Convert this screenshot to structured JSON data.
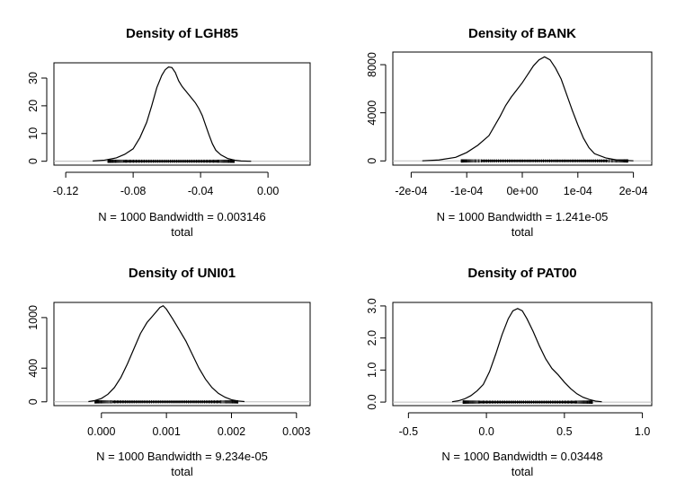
{
  "chart_data": [
    {
      "type": "line",
      "title": "Density of LGH85",
      "sub_label": "N = 1000   Bandwidth = 0.003146",
      "xlabel": "total",
      "ylabel": "",
      "xlim": [
        -0.127,
        0.025
      ],
      "ylim": [
        -1.4,
        35.5
      ],
      "xticks": [
        -0.12,
        -0.08,
        -0.04,
        0.0
      ],
      "xtick_labels": [
        "-0.12",
        "-0.08",
        "-0.04",
        "0.00"
      ],
      "yticks": [
        0,
        10,
        20,
        30
      ],
      "ytick_labels": [
        "0",
        "10",
        "20",
        "30"
      ],
      "rug_range": [
        -0.095,
        -0.02
      ],
      "x": [
        -0.104,
        -0.097,
        -0.09,
        -0.085,
        -0.08,
        -0.076,
        -0.072,
        -0.069,
        -0.066,
        -0.063,
        -0.061,
        -0.059,
        -0.057,
        -0.055,
        -0.053,
        -0.051,
        -0.049,
        -0.047,
        -0.045,
        -0.043,
        -0.041,
        -0.039,
        -0.037,
        -0.035,
        -0.033,
        -0.031,
        -0.028,
        -0.024,
        -0.02,
        -0.016,
        -0.01
      ],
      "y": [
        0.1,
        0.4,
        1.2,
        2.5,
        4.5,
        8.5,
        14.0,
        20.0,
        26.5,
        31.0,
        33.0,
        34.0,
        33.8,
        32.0,
        29.0,
        27.0,
        25.5,
        24.0,
        22.5,
        21.0,
        19.0,
        16.5,
        13.0,
        9.5,
        6.3,
        4.0,
        2.3,
        1.0,
        0.4,
        0.1,
        0.0
      ],
      "grid": false,
      "legend": "none"
    },
    {
      "type": "line",
      "title": "Density of BANK",
      "sub_label": "N = 1000   Bandwidth = 1.241e-05",
      "xlabel": "total",
      "ylabel": "",
      "xlim": [
        -0.000233,
        0.000233
      ],
      "ylim": [
        -350,
        9050
      ],
      "xticks": [
        -0.0002,
        -0.0001,
        0.0,
        0.0001,
        0.0002
      ],
      "xtick_labels": [
        "-2e-04",
        "-1e-04",
        "0e+00",
        "1e-04",
        "2e-04"
      ],
      "yticks": [
        0,
        4000,
        8000
      ],
      "ytick_labels": [
        "0",
        "4000",
        "8000"
      ],
      "rug_range": [
        -0.00011,
        0.00019
      ],
      "x": [
        -0.00018,
        -0.00015,
        -0.00012,
        -0.0001,
        -8e-05,
        -6e-05,
        -4e-05,
        -3e-05,
        -2e-05,
        -1e-05,
        0.0,
        1e-05,
        2e-05,
        3e-05,
        4e-05,
        5e-05,
        6e-05,
        7e-05,
        8e-05,
        9e-05,
        0.0001,
        0.00011,
        0.00012,
        0.00013,
        0.00015,
        0.00017,
        0.0002
      ],
      "y": [
        10,
        80,
        300,
        700,
        1300,
        2100,
        3700,
        4600,
        5300,
        5900,
        6500,
        7200,
        7900,
        8400,
        8650,
        8400,
        7700,
        6800,
        5500,
        4200,
        3000,
        1900,
        1100,
        600,
        250,
        80,
        10
      ],
      "grid": false,
      "legend": "none"
    },
    {
      "type": "line",
      "title": "Density of UNI01",
      "sub_label": "N = 1000   Bandwidth = 9.234e-05",
      "xlabel": "total",
      "ylabel": "",
      "xlim": [
        -0.00073,
        0.00321
      ],
      "ylim": [
        -45,
        1180
      ],
      "xticks": [
        0.0,
        0.001,
        0.002,
        0.003
      ],
      "xtick_labels": [
        "0.000",
        "0.001",
        "0.002",
        "0.003"
      ],
      "yticks": [
        0,
        400,
        1000
      ],
      "ytick_labels": [
        "0",
        "400",
        "1000"
      ],
      "rug_range": [
        -0.0001,
        0.0021
      ],
      "x": [
        -0.0002,
        -0.0001,
        0.0,
        0.0001,
        0.0002,
        0.0003,
        0.0004,
        0.0005,
        0.0006,
        0.0007,
        0.0008,
        0.0009,
        0.00095,
        0.001,
        0.0011,
        0.0012,
        0.0013,
        0.0014,
        0.0015,
        0.0016,
        0.0017,
        0.0018,
        0.0019,
        0.002,
        0.0021,
        0.0022
      ],
      "y": [
        3,
        15,
        40,
        90,
        170,
        290,
        450,
        630,
        810,
        940,
        1030,
        1120,
        1140,
        1100,
        980,
        850,
        720,
        560,
        400,
        270,
        170,
        100,
        55,
        25,
        10,
        3
      ],
      "grid": false,
      "legend": "none"
    },
    {
      "type": "line",
      "title": "Density of PAT00",
      "sub_label": "N = 1000   Bandwidth = 0.03448",
      "xlabel": "total",
      "ylabel": "",
      "xlim": [
        -0.6,
        1.06
      ],
      "ylim": [
        -0.11,
        3.11
      ],
      "xticks": [
        -0.5,
        0.0,
        0.5,
        1.0
      ],
      "xtick_labels": [
        "-0.5",
        "0.0",
        "0.5",
        "1.0"
      ],
      "yticks": [
        0.0,
        1.0,
        2.0,
        3.0
      ],
      "ytick_labels": [
        "0.0",
        "1.0",
        "2.0",
        "3.0"
      ],
      "rug_range": [
        -0.15,
        0.68
      ],
      "x": [
        -0.22,
        -0.18,
        -0.14,
        -0.1,
        -0.06,
        -0.02,
        0.02,
        0.06,
        0.1,
        0.14,
        0.17,
        0.2,
        0.23,
        0.26,
        0.3,
        0.34,
        0.38,
        0.42,
        0.46,
        0.5,
        0.54,
        0.58,
        0.62,
        0.66,
        0.7,
        0.74
      ],
      "y": [
        0.01,
        0.04,
        0.1,
        0.2,
        0.35,
        0.55,
        0.95,
        1.5,
        2.1,
        2.6,
        2.85,
        2.92,
        2.85,
        2.6,
        2.2,
        1.75,
        1.35,
        1.05,
        0.85,
        0.62,
        0.42,
        0.26,
        0.15,
        0.08,
        0.03,
        0.01
      ],
      "grid": false,
      "legend": "none"
    }
  ]
}
